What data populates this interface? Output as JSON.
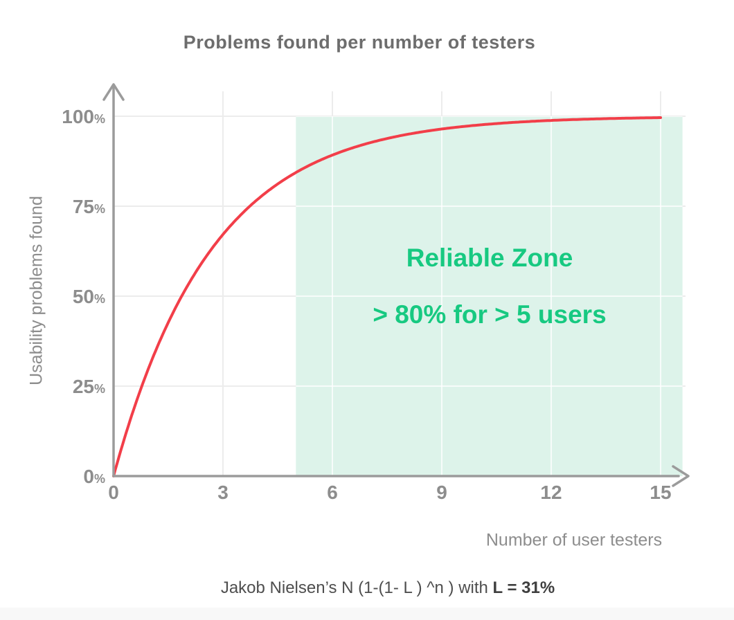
{
  "page": {
    "background": "#ffffff",
    "footer_strip_color": "#f8f8f8"
  },
  "chart_data": {
    "type": "line",
    "title": "Problems found per number of testers",
    "xlabel": "Number of user testers",
    "ylabel": "Usability problems found",
    "x_ticks": [
      0,
      3,
      6,
      9,
      12,
      15
    ],
    "y_ticks": [
      0,
      25,
      50,
      75,
      100
    ],
    "y_tick_suffix": "%",
    "xlim": [
      0,
      15.6
    ],
    "ylim": [
      0,
      105
    ],
    "grid": true,
    "axis_color": "#9b9b9b",
    "grid_color": "#ececec",
    "tick_label_color": "#8d8d8d",
    "series": [
      {
        "name": "usability-problems-found-curve",
        "color": "#f23e49",
        "formula": "N (1-(1- L ) ^n )",
        "L": 0.31
      }
    ],
    "curve_points": [
      {
        "n": 0,
        "pct": 0
      },
      {
        "n": 1,
        "pct": 31
      },
      {
        "n": 2,
        "pct": 52.4
      },
      {
        "n": 3,
        "pct": 67.2
      },
      {
        "n": 4,
        "pct": 77.3
      },
      {
        "n": 5,
        "pct": 84.4
      },
      {
        "n": 6,
        "pct": 89.2
      },
      {
        "n": 9,
        "pct": 96.5
      },
      {
        "n": 12,
        "pct": 98.8
      },
      {
        "n": 15,
        "pct": 99.6
      }
    ],
    "zone": {
      "label_line1": "Reliable Zone",
      "label_line2": "> 80% for > 5 users",
      "x_start": 5,
      "x_end": 15.6,
      "y_start": 0,
      "y_end": 100,
      "fill": "#ddf3ea",
      "inner_grid_color": "rgba(255,255,255,0.75)",
      "text_color": "#17c981"
    },
    "caption": {
      "text_plain": "Jakob Nielsen’s N (1-(1- L ) ^n ) with ",
      "text_bold": "L = 31%"
    }
  }
}
